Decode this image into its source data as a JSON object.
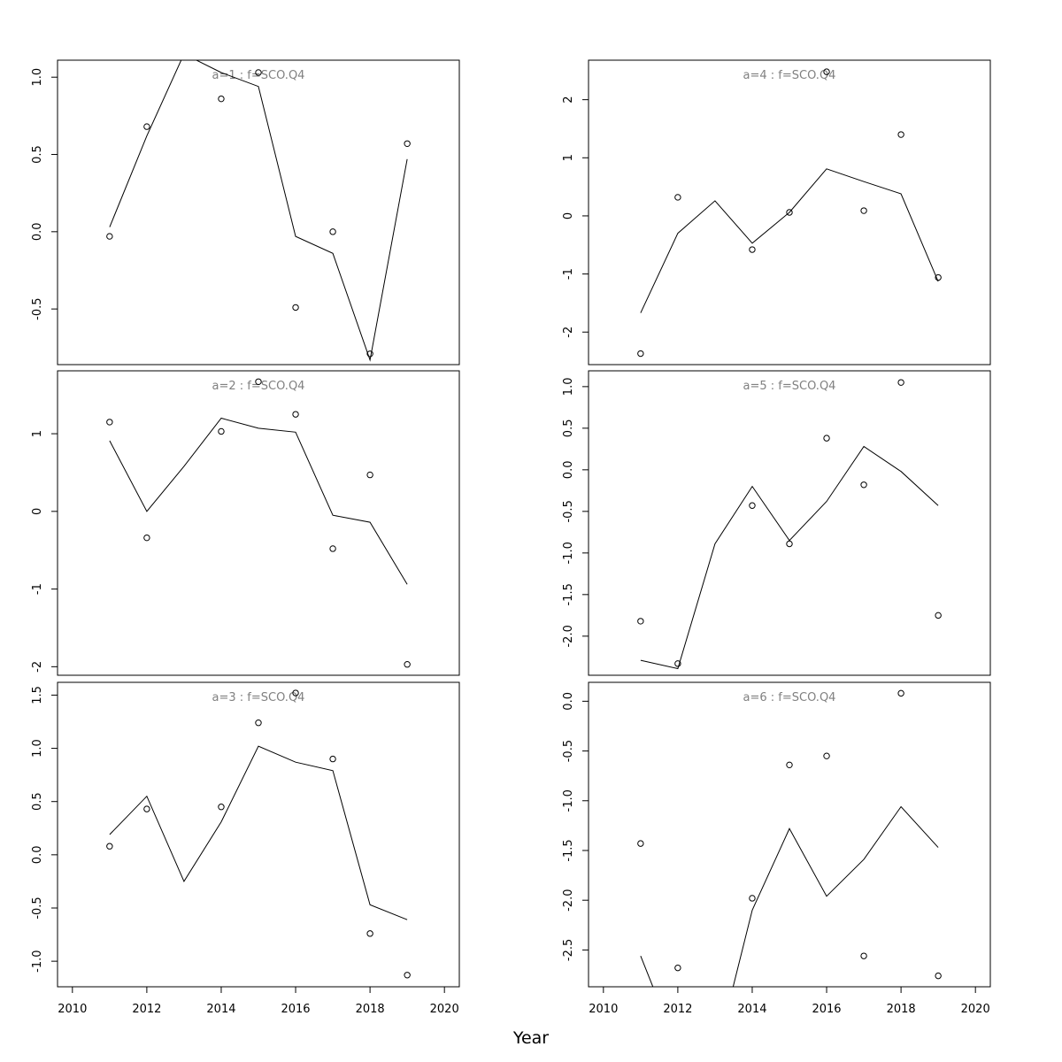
{
  "chart_data": {
    "type": "line",
    "xlabel": "Year",
    "xlim": [
      2009.6,
      2020.4
    ],
    "xticks": [
      2010,
      2012,
      2014,
      2016,
      2018,
      2020
    ],
    "x": [
      2011,
      2012,
      2013,
      2014,
      2015,
      2016,
      2017,
      2018,
      2019
    ],
    "colors": {
      "frame": "#000000",
      "title": "#808080",
      "points": "#000000",
      "line": "#000000"
    },
    "panels": [
      {
        "title": "a=1  :  f=SCO.Q4",
        "ylim": [
          -0.86,
          1.11
        ],
        "yticks": [
          -0.5,
          0.0,
          0.5,
          1.0
        ],
        "ytick_labels": [
          "-0.5",
          "0.0",
          "0.5",
          "1.0"
        ],
        "points": {
          "x": [
            2011,
            2012,
            2014,
            2015,
            2016,
            2017,
            2018,
            2019
          ],
          "y": [
            -0.03,
            0.68,
            0.86,
            1.03,
            -0.49,
            0.0,
            -0.79,
            0.57
          ]
        },
        "line": [
          0.03,
          0.62,
          1.15,
          1.03,
          0.94,
          -0.03,
          -0.14,
          -0.83,
          0.47
        ]
      },
      {
        "title": "a=4  :  f=SCO.Q4",
        "ylim": [
          -2.56,
          2.68
        ],
        "yticks": [
          -2,
          -1,
          0,
          1,
          2
        ],
        "ytick_labels": [
          "-2",
          "-1",
          "0",
          "1",
          "2"
        ],
        "points": {
          "x": [
            2011,
            2012,
            2014,
            2015,
            2016,
            2017,
            2018,
            2019
          ],
          "y": [
            -2.37,
            0.32,
            -0.58,
            0.06,
            2.48,
            0.09,
            1.4,
            -1.06
          ]
        },
        "line": [
          -1.67,
          -0.3,
          0.26,
          -0.47,
          0.06,
          0.81,
          0.59,
          0.38,
          -1.13
        ]
      },
      {
        "title": "a=2  :  f=SCO.Q4",
        "ylim": [
          -2.11,
          1.81
        ],
        "yticks": [
          -2,
          -1,
          0,
          1
        ],
        "ytick_labels": [
          "-2",
          "-1",
          "0",
          "1"
        ],
        "points": {
          "x": [
            2011,
            2012,
            2014,
            2015,
            2016,
            2017,
            2018,
            2019
          ],
          "y": [
            1.15,
            -0.34,
            1.03,
            1.67,
            1.25,
            -0.48,
            0.47,
            -1.97
          ]
        },
        "line": [
          0.91,
          0.0,
          0.58,
          1.2,
          1.07,
          1.02,
          -0.05,
          -0.14,
          -0.94
        ]
      },
      {
        "title": "a=5  :  f=SCO.Q4",
        "ylim": [
          -2.47,
          1.19
        ],
        "yticks": [
          -2.0,
          -1.5,
          -1.0,
          -0.5,
          0.0,
          0.5,
          1.0
        ],
        "ytick_labels": [
          "-2.0",
          "-1.5",
          "-1.0",
          "-0.5",
          "0.0",
          "0.5",
          "1.0"
        ],
        "points": {
          "x": [
            2011,
            2012,
            2014,
            2015,
            2016,
            2017,
            2018,
            2019
          ],
          "y": [
            -1.82,
            -2.33,
            -0.43,
            -0.89,
            0.38,
            -0.18,
            1.05,
            -1.75
          ]
        },
        "line": [
          -2.29,
          -2.39,
          -0.89,
          -0.2,
          -0.85,
          -0.38,
          0.28,
          -0.02,
          -0.43
        ]
      },
      {
        "title": "a=3  :  f=SCO.Q4",
        "ylim": [
          -1.24,
          1.62
        ],
        "yticks": [
          -1.0,
          -0.5,
          0.0,
          0.5,
          1.0,
          1.5
        ],
        "ytick_labels": [
          "-1.0",
          "-0.5",
          "0.0",
          "0.5",
          "1.0",
          "1.5"
        ],
        "points": {
          "x": [
            2011,
            2012,
            2014,
            2015,
            2016,
            2017,
            2018,
            2019
          ],
          "y": [
            0.08,
            0.43,
            0.45,
            1.24,
            1.52,
            0.9,
            -0.74,
            -1.13
          ]
        },
        "line": [
          0.19,
          0.55,
          -0.25,
          0.31,
          1.02,
          0.87,
          0.79,
          -0.47,
          -0.61
        ]
      },
      {
        "title": "a=6  :  f=SCO.Q4",
        "ylim": [
          -2.87,
          0.19
        ],
        "yticks": [
          -2.5,
          -2.0,
          -1.5,
          -1.0,
          -0.5,
          0.0
        ],
        "ytick_labels": [
          "-2.5",
          "-2.0",
          "-1.5",
          "-1.0",
          "-0.5",
          "0.0"
        ],
        "points": {
          "x": [
            2011,
            2012,
            2014,
            2015,
            2016,
            2017,
            2018,
            2019
          ],
          "y": [
            -1.43,
            -2.68,
            -1.98,
            -0.64,
            -0.55,
            -2.56,
            0.08,
            -2.76
          ]
        },
        "line": [
          -2.56,
          -3.5,
          -3.6,
          -2.1,
          -1.28,
          -1.96,
          -1.59,
          -1.06,
          -1.47
        ]
      }
    ]
  }
}
